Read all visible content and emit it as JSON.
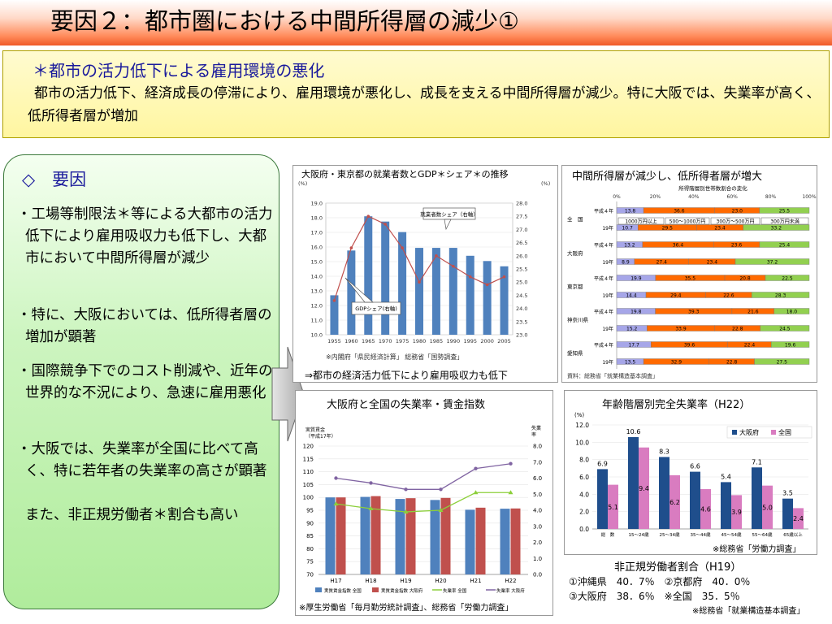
{
  "title": "要因２：都市圏における中間所得層の減少①",
  "intro": {
    "heading": "＊都市の活力低下による雇用環境の悪化",
    "body": "都市の活力低下、経済成長の停滞により、雇用環境が悪化し、成長を支える中間所得層が減少。特に大阪では、失業率が高く、低所得者層が増加"
  },
  "factors": {
    "heading": "◇　要因",
    "items": [
      "・工場等制限法＊等による大都市の活力低下により雇用吸収力も低下し、大都市において中間所得層が減少",
      "・特に、大阪においては、低所得者層の増加が顕著",
      "・国際競争下でのコスト削減や、近年の世界的な不況により、急速に雇用悪化",
      "・大阪では、失業率が全国に比べて高く、特に若年者の失業率の高さが顕著",
      "また、非正規労働者＊割合も高い"
    ]
  },
  "colors": {
    "accent": "#1a1a9c",
    "bar_blue": "#4f81bd",
    "line_red": "#c0504d",
    "seg_blue": "#a6a6e8",
    "seg_orange": "#ff6a00",
    "seg_green": "#92d050",
    "pink": "#d97cc0",
    "navy": "#1f4e8c"
  },
  "chart_data": [
    {
      "type": "bar",
      "title": "大阪府・東京都の就業者数とGDP＊シェア＊の推移",
      "left_unit": "(%)",
      "right_unit": "(%)",
      "categories": [
        "1955",
        "1960",
        "1965",
        "1970",
        "1975",
        "1980",
        "1985",
        "1990",
        "1995",
        "2000",
        "2005"
      ],
      "series": [
        {
          "name": "就業者数シェア（右軸）",
          "values": [
            24.5,
            26.2,
            27.5,
            27.3,
            26.9,
            26.3,
            26.3,
            26.3,
            26.0,
            25.8,
            25.6
          ]
        },
        {
          "name": "GDPシェア(右軸)",
          "values": [
            24.3,
            26.3,
            27.5,
            27.2,
            26.3,
            25.0,
            26.0,
            25.6,
            25.2,
            24.9,
            25.2
          ]
        }
      ],
      "ylim_left": [
        10,
        19
      ],
      "yticks_left": [
        "19.0",
        "18.0",
        "17.0",
        "16.0",
        "15.0",
        "14.0",
        "13.0",
        "12.0",
        "11.0",
        "10.0"
      ],
      "ylim_right": [
        23,
        28
      ],
      "yticks_right": [
        "28.0",
        "27.5",
        "27.0",
        "26.5",
        "26.0",
        "25.5",
        "25.0",
        "24.5",
        "24.0",
        "23.5",
        "23.0"
      ],
      "source": "※内閣府「県民経済計算」 総務省「国勢調査」",
      "caption": "⇒都市の経済活力低下により雇用吸収力も低下"
    },
    {
      "type": "bar",
      "stacked": true,
      "orientation": "horizontal",
      "title": "中間所得層が減少し、低所得者層が増大",
      "subtitle": "所得階層別世帯数割合の変化",
      "x_ticks": [
        "0%",
        "20%",
        "40%",
        "60%",
        "80%",
        "100%"
      ],
      "legend": [
        "1000万円以上",
        "500～1000万円",
        "300万～500万円",
        "300万円未満"
      ],
      "groups": [
        {
          "name": "全　国",
          "rows": [
            {
              "label": "平成４年",
              "values": [
                13.8,
                36.6,
                23.0,
                25.5
              ]
            },
            {
              "label": "19年",
              "values": [
                10.7,
                29.5,
                23.4,
                33.2
              ]
            }
          ]
        },
        {
          "name": "大阪府",
          "rows": [
            {
              "label": "平成４年",
              "values": [
                13.2,
                36.4,
                23.6,
                25.4
              ]
            },
            {
              "label": "19年",
              "values": [
                8.9,
                27.4,
                23.4,
                37.2
              ]
            }
          ]
        },
        {
          "name": "東京都",
          "rows": [
            {
              "label": "平成４年",
              "values": [
                19.9,
                35.5,
                20.8,
                22.5
              ]
            },
            {
              "label": "19年",
              "values": [
                14.4,
                29.4,
                22.6,
                28.3
              ]
            }
          ]
        },
        {
          "name": "神奈川県",
          "rows": [
            {
              "label": "平成４年",
              "values": [
                19.8,
                39.3,
                21.6,
                18.0
              ]
            },
            {
              "label": "19年",
              "values": [
                15.2,
                33.9,
                22.8,
                24.5
              ]
            }
          ]
        },
        {
          "name": "愛知県",
          "rows": [
            {
              "label": "平成４年",
              "values": [
                17.7,
                39.6,
                22.4,
                19.6
              ]
            },
            {
              "label": "19年",
              "values": [
                13.5,
                32.9,
                22.8,
                27.5
              ]
            }
          ]
        }
      ],
      "source": "資料：総務省「就業構造基本調査」"
    },
    {
      "type": "bar",
      "title": "大阪府と全国の失業率・賃金指数",
      "left_unit": "実質賃金\n（平成17年）",
      "right_unit": "失業\n率",
      "categories": [
        "H17",
        "H18",
        "H19",
        "H20",
        "H21",
        "H22"
      ],
      "series": [
        {
          "name": "実質賃金指数 全国",
          "kind": "bar",
          "values": [
            100.0,
            100.2,
            99.4,
            99.0,
            95.2,
            95.6
          ]
        },
        {
          "name": "実質賃金指数 大阪府",
          "kind": "bar",
          "values": [
            100.0,
            100.5,
            99.7,
            99.8,
            96.0,
            95.7
          ]
        },
        {
          "name": "失業率 全国",
          "kind": "line",
          "values": [
            4.4,
            4.1,
            3.9,
            4.0,
            5.1,
            5.1
          ]
        },
        {
          "name": "失業率 大阪府",
          "kind": "line",
          "values": [
            6.0,
            5.7,
            5.3,
            5.3,
            6.6,
            6.9
          ]
        }
      ],
      "ylim_left": [
        70,
        120
      ],
      "yticks_left": [
        "120",
        "115",
        "110",
        "105",
        "100",
        "95",
        "90",
        "85",
        "80",
        "75",
        "70"
      ],
      "ylim_right": [
        0,
        8
      ],
      "yticks_right": [
        "8.0",
        "7.0",
        "6.0",
        "5.0",
        "4.0",
        "3.0",
        "2.0",
        "1.0",
        "0.0"
      ],
      "source": "※厚生労働省「毎月勤労統計調査」、総務省「労働力調査」"
    },
    {
      "type": "bar",
      "title": "年齢階層別完全失業率（H22）",
      "ylabel": "(%)",
      "categories": [
        "総　数",
        "15～24歳",
        "25～34歳",
        "35～44歳",
        "45～54歳",
        "55～64歳",
        "65歳以上"
      ],
      "series": [
        {
          "name": "大阪府",
          "values": [
            6.9,
            10.6,
            8.3,
            6.6,
            5.4,
            7.1,
            3.5
          ]
        },
        {
          "name": "全国",
          "values": [
            5.1,
            9.4,
            6.2,
            4.6,
            3.9,
            5.0,
            2.4
          ]
        }
      ],
      "ylim": [
        0,
        12
      ],
      "yticks": [
        "12.0",
        "10.0",
        "8.0",
        "6.0",
        "4.0",
        "2.0",
        "0.0"
      ],
      "source": "※総務省「労働力調査」"
    }
  ],
  "nonregular": {
    "title": "非正規労働者割合（H19）",
    "line1": "①沖縄県　40．7％　②京都府　40．0％",
    "line2": "③大阪府　38．6％　※全国　35．5％",
    "source": "※総務省「就業構造基本調査」"
  }
}
